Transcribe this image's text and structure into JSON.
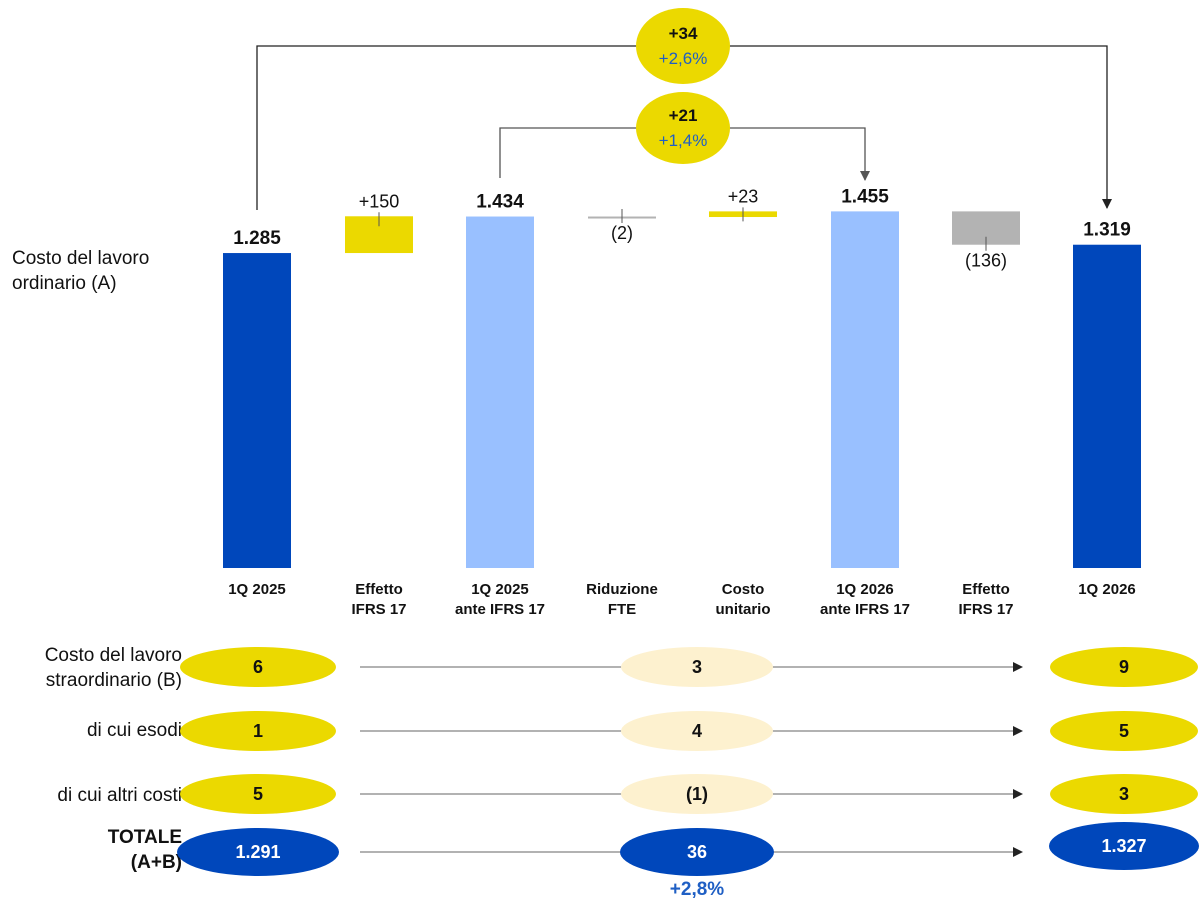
{
  "row_labels": {
    "ordinario": [
      "Costo del lavoro",
      "ordinario (A)"
    ],
    "straordinario": [
      "Costo del lavoro",
      "straordinario (B)"
    ],
    "esodi": "di cui esodi",
    "altri": "di cui altri costi",
    "totale": [
      "TOTALE",
      "(A+B)"
    ]
  },
  "colors": {
    "dark_blue": "#0047BB",
    "light_blue": "#99C0FF",
    "yellow": "#EBD900",
    "grey": "#B3B3B3",
    "pale_yellow": "#FDF1CF",
    "pct_blue": "#1F5FC4"
  },
  "chart_data": {
    "type": "bar",
    "subtype": "waterfall",
    "categories": [
      [
        "1Q 2025"
      ],
      [
        "Effetto",
        "IFRS 17"
      ],
      [
        "1Q 2025",
        "ante IFRS 17"
      ],
      [
        "Riduzione",
        "FTE"
      ],
      [
        "Costo",
        "unitario"
      ],
      [
        "1Q 2026",
        "ante IFRS 17"
      ],
      [
        "Effetto",
        "IFRS 17"
      ],
      [
        "1Q 2026"
      ]
    ],
    "bars": [
      {
        "kind": "total",
        "value": 1285,
        "label": "1.285",
        "color": "dark_blue"
      },
      {
        "kind": "delta",
        "value": 150,
        "label": "+150",
        "color": "yellow"
      },
      {
        "kind": "total",
        "value": 1434,
        "label": "1.434",
        "color": "light_blue"
      },
      {
        "kind": "delta",
        "value": -2,
        "label": "(2)",
        "color": "grey"
      },
      {
        "kind": "delta",
        "value": 23,
        "label": "+23",
        "color": "yellow"
      },
      {
        "kind": "total",
        "value": 1455,
        "label": "1.455",
        "color": "light_blue"
      },
      {
        "kind": "delta",
        "value": -136,
        "label": "(136)",
        "color": "grey"
      },
      {
        "kind": "total",
        "value": 1319,
        "label": "1.319",
        "color": "dark_blue"
      }
    ],
    "callouts": [
      {
        "from": 0,
        "to": 7,
        "value": "+34",
        "pct": "+2,6%"
      },
      {
        "from": 2,
        "to": 5,
        "value": "+21",
        "pct": "+1,4%"
      }
    ]
  },
  "bottom_rows": [
    {
      "key": "straordinario",
      "start": "6",
      "delta": "3",
      "end": "9",
      "style": "yellow"
    },
    {
      "key": "esodi",
      "start": "1",
      "delta": "4",
      "end": "5",
      "style": "yellow"
    },
    {
      "key": "altri",
      "start": "5",
      "delta": "(1)",
      "end": "3",
      "style": "yellow"
    },
    {
      "key": "totale",
      "start": "1.291",
      "delta": "36",
      "end": "1.327",
      "pct": "+2,8%",
      "style": "blue"
    }
  ]
}
